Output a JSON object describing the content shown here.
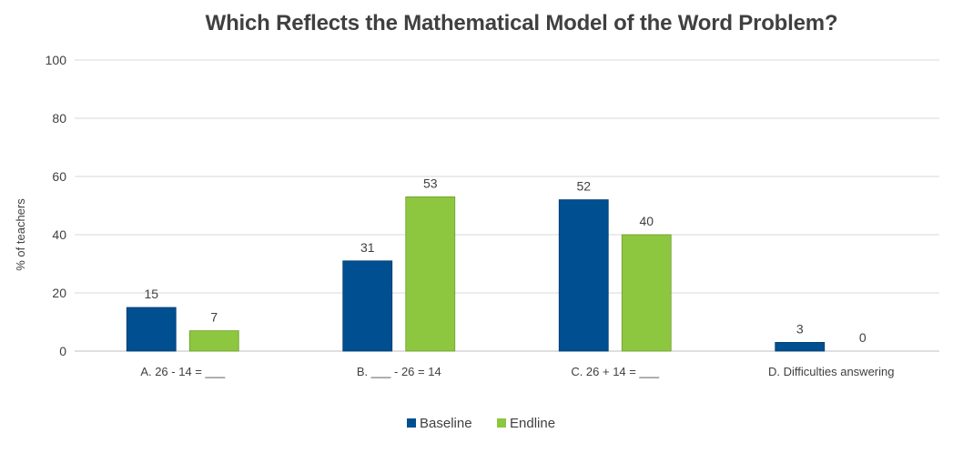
{
  "chart_data": {
    "type": "bar",
    "title": "Which Reflects the Mathematical Model of the Word Problem?",
    "ylabel": "% of teachers",
    "xlabel": "",
    "categories": [
      "A. 26 - 14 = ___",
      "B. ___ - 26 = 14",
      "C. 26 + 14 = ___",
      "D. Difficulties answering"
    ],
    "series": [
      {
        "name": "Baseline",
        "values": [
          15,
          31,
          52,
          3
        ],
        "color": "#004f91"
      },
      {
        "name": "Endline",
        "values": [
          7,
          53,
          40,
          0
        ],
        "color": "#8dc63f"
      }
    ],
    "ylim": [
      0,
      100
    ],
    "yticks": [
      0,
      20,
      40,
      60,
      80,
      100
    ],
    "grid": true,
    "legend": "bottom-center"
  }
}
